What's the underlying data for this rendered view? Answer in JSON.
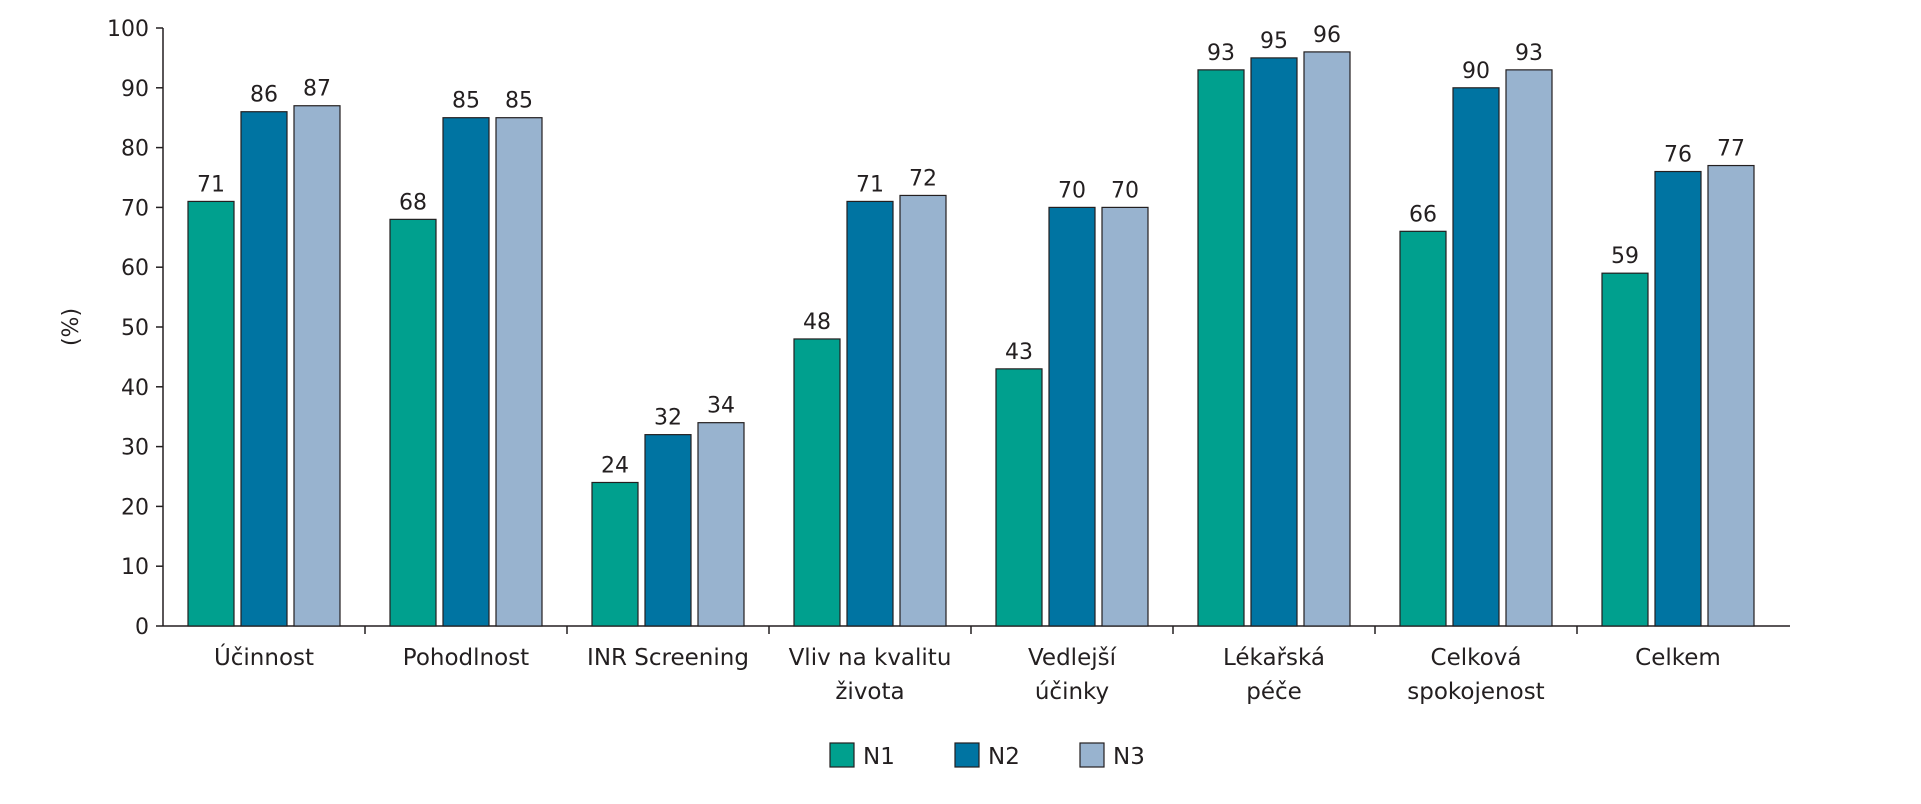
{
  "chart_data": {
    "type": "bar",
    "title": "",
    "xlabel": "",
    "ylabel": "(%)",
    "ylim": [
      0,
      100
    ],
    "yticks": [
      0,
      10,
      20,
      30,
      40,
      50,
      60,
      70,
      80,
      90,
      100
    ],
    "grid": false,
    "legend_position": "bottom-center",
    "categories": [
      [
        "Účinnost"
      ],
      [
        "Pohodlnost"
      ],
      [
        "INR Screening"
      ],
      [
        "Vliv na kvalitu",
        "života"
      ],
      [
        "Vedlejší",
        "účinky"
      ],
      [
        "Lékařská",
        "péče"
      ],
      [
        "Celková",
        "spokojenost"
      ],
      [
        "Celkem"
      ]
    ],
    "series": [
      {
        "name": "N1",
        "color": "#00a08e",
        "values": [
          71,
          68,
          24,
          48,
          43,
          93,
          66,
          59
        ]
      },
      {
        "name": "N2",
        "color": "#0074a2",
        "values": [
          86,
          85,
          32,
          71,
          70,
          95,
          90,
          76
        ]
      },
      {
        "name": "N3",
        "color": "#98b3cf",
        "values": [
          87,
          85,
          34,
          72,
          70,
          96,
          93,
          77
        ]
      }
    ]
  }
}
